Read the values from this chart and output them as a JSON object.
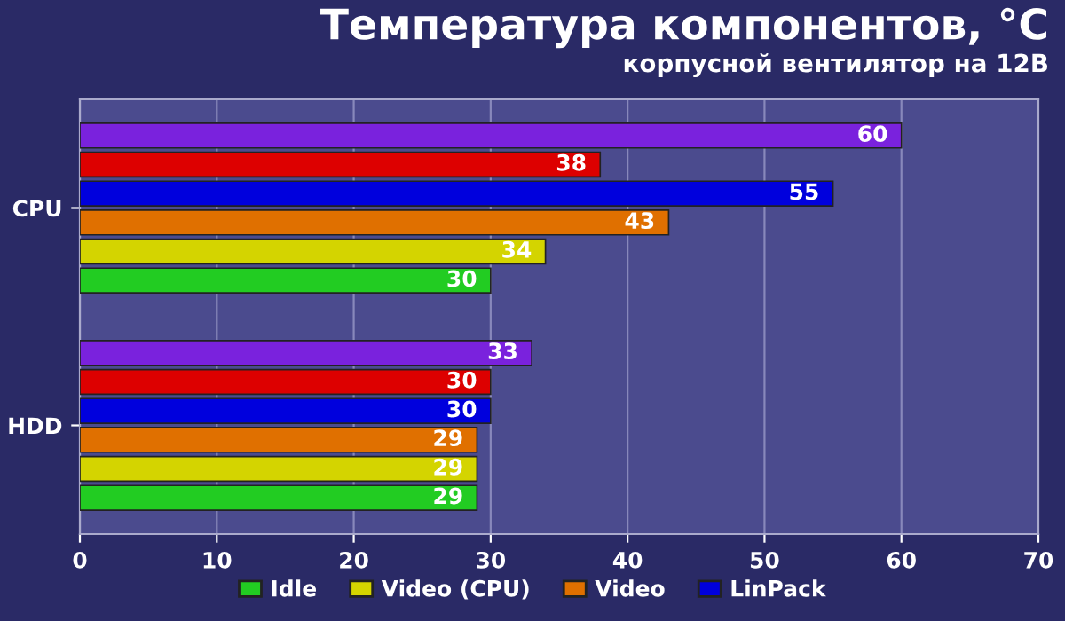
{
  "chart_data": {
    "type": "bar",
    "orientation": "horizontal",
    "title": "Температура компонентов, °C",
    "subtitle": "корпусной вентилятор на 12В",
    "categories": [
      "CPU",
      "HDD"
    ],
    "series": [
      {
        "name": "Idle",
        "color": "#22cc22",
        "values": [
          30,
          29
        ]
      },
      {
        "name": "Video (CPU)",
        "color": "#d4d400",
        "values": [
          34,
          29
        ]
      },
      {
        "name": "Video",
        "color": "#e07000",
        "values": [
          43,
          29
        ]
      },
      {
        "name": "LinPack",
        "color": "#0000dd",
        "values": [
          55,
          30
        ]
      },
      {
        "color": "#dd0000",
        "values": [
          38,
          30
        ]
      },
      {
        "color": "#7a22dd",
        "values": [
          60,
          33
        ]
      }
    ],
    "xlim": [
      0,
      70
    ],
    "xticks": [
      0,
      10,
      20,
      30,
      40,
      50,
      60,
      70
    ],
    "grid": "x",
    "legend": "bottom",
    "data_labels": true
  }
}
